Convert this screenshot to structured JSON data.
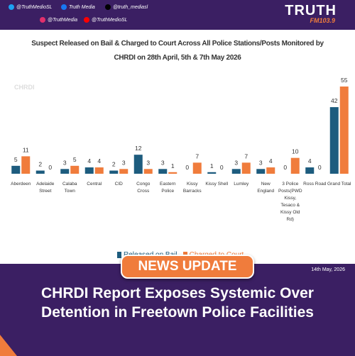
{
  "header": {
    "handles": [
      "@TruthMedioSL",
      "Truth Media",
      "@truth_mediasl",
      "@TruthMedia",
      "@TruthMedioSL"
    ],
    "logo": "TRUTH",
    "station": "FM103.9"
  },
  "watermark": "CHRDI",
  "chart_data": {
    "type": "bar",
    "title": "Suspect Released on Bail & Charged to Court Across All Police Stations/Posts Monitored by CHRDI on 28th April, 5th & 7th May 2026",
    "categories": [
      "Aberdeen",
      "Adelaide Street",
      "Calaba Town",
      "Central",
      "CID",
      "Congo Cross",
      "Eastern Police",
      "Kissy Barracks",
      "Kissy Shell",
      "Lumley",
      "New England",
      "3 Police Posts(PWD Kissy, Tesaco & Kissy Old Rd)",
      "Ross Road",
      "Grand Total"
    ],
    "series": [
      {
        "name": "Released on Bail",
        "color": "#1d5c7e",
        "values": [
          5,
          2,
          3,
          4,
          2,
          12,
          3,
          0,
          1,
          3,
          3,
          0,
          4,
          42
        ]
      },
      {
        "name": "Charged to Court",
        "color": "#f07c3c",
        "values": [
          11,
          0,
          5,
          4,
          3,
          3,
          1,
          7,
          0,
          7,
          4,
          10,
          0,
          55
        ]
      }
    ]
  },
  "badge": "NEWS UPDATE",
  "date": "14th May, 2026",
  "headline": "CHRDI Report Exposes Systemic Over Detention in Freetown Police Facilities"
}
